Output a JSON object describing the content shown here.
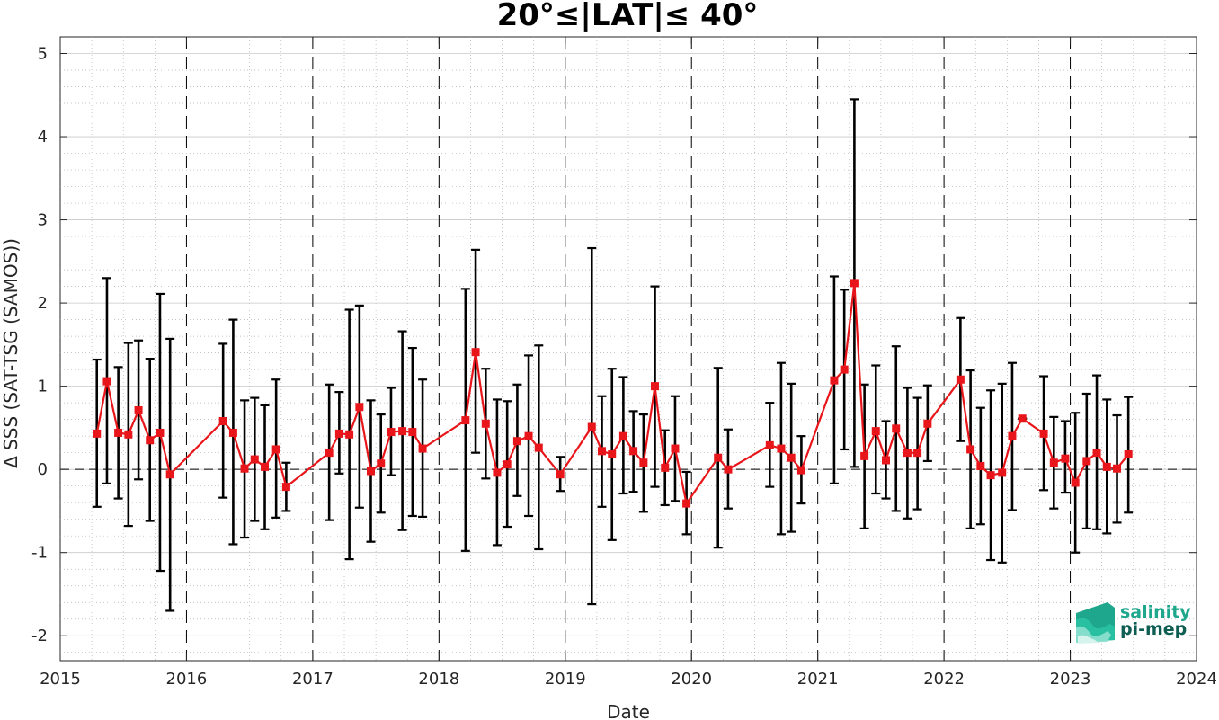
{
  "chart_data": {
    "type": "line",
    "title": "20°≤|LAT|≤ 40°",
    "xlabel": "Date",
    "ylabel": "Δ SSS (SAT-TSG (SAMOS))",
    "xlim": [
      2015,
      2024
    ],
    "ylim": [
      -2.3,
      5.2
    ],
    "xticks": [
      "2015",
      "2016",
      "2017",
      "2018",
      "2019",
      "2020",
      "2021",
      "2022",
      "2023",
      "2024"
    ],
    "yticks": [
      "5",
      "4",
      "3",
      "2",
      "1",
      "0",
      "-1",
      "-2"
    ],
    "grid": true,
    "year_separators": [
      2016,
      2017,
      2018,
      2019,
      2020,
      2021,
      2022,
      2023
    ],
    "zero_line": 0,
    "series_color": "#e8161a",
    "errorbar_color": "#000000",
    "series": [
      {
        "x": [
          2015.29,
          2015.37,
          2015.46,
          2015.54,
          2015.62,
          2015.71,
          2015.79,
          2015.87,
          2016.29,
          2016.37,
          2016.46,
          2016.54,
          2016.62,
          2016.71,
          2016.79,
          2017.13,
          2017.21,
          2017.29,
          2017.37,
          2017.46,
          2017.54,
          2017.62,
          2017.71,
          2017.79,
          2017.87,
          2018.21,
          2018.29,
          2018.37,
          2018.46,
          2018.54,
          2018.62,
          2018.71,
          2018.79,
          2018.96,
          2019.21,
          2019.29,
          2019.37,
          2019.46,
          2019.54,
          2019.62,
          2019.71,
          2019.79,
          2019.87,
          2019.96,
          2020.21,
          2020.29,
          2020.62,
          2020.71,
          2020.79,
          2020.87,
          2021.13,
          2021.21,
          2021.29,
          2021.37,
          2021.46,
          2021.54,
          2021.62,
          2021.71,
          2021.79,
          2021.87,
          2022.13,
          2022.21,
          2022.29,
          2022.37,
          2022.46,
          2022.54,
          2022.62,
          2022.79,
          2022.87,
          2022.96,
          2023.04,
          2023.13,
          2023.21,
          2023.29,
          2023.37,
          2023.46
        ],
        "y": [
          0.43,
          1.06,
          0.44,
          0.42,
          0.71,
          0.35,
          0.44,
          -0.06,
          0.58,
          0.44,
          0.01,
          0.12,
          0.03,
          0.24,
          -0.21,
          0.2,
          0.43,
          0.42,
          0.75,
          -0.02,
          0.07,
          0.45,
          0.46,
          0.45,
          0.25,
          0.59,
          1.41,
          0.55,
          -0.04,
          0.06,
          0.34,
          0.4,
          0.26,
          -0.06,
          0.51,
          0.22,
          0.18,
          0.4,
          0.22,
          0.08,
          1.0,
          0.02,
          0.25,
          -0.41,
          0.14,
          0.0,
          0.29,
          0.25,
          0.14,
          -0.01,
          1.07,
          1.2,
          2.24,
          0.16,
          0.46,
          0.11,
          0.49,
          0.2,
          0.2,
          0.55,
          1.08,
          0.24,
          0.04,
          -0.07,
          -0.04,
          0.4,
          0.61,
          0.43,
          0.08,
          0.13,
          -0.16,
          0.1,
          0.2,
          0.03,
          0.01,
          0.18
        ],
        "y_low": [
          -0.45,
          -0.17,
          -0.35,
          -0.68,
          -0.12,
          -0.62,
          -1.22,
          -1.7,
          -0.34,
          -0.9,
          -0.82,
          -0.62,
          -0.72,
          -0.58,
          -0.5,
          -0.61,
          -0.05,
          -1.08,
          -0.46,
          -0.87,
          -0.52,
          -0.07,
          -0.73,
          -0.56,
          -0.57,
          -0.98,
          0.2,
          -0.11,
          -0.91,
          -0.69,
          -0.32,
          -0.56,
          -0.96,
          -0.26,
          -1.62,
          -0.45,
          -0.85,
          -0.29,
          -0.27,
          -0.51,
          -0.21,
          -0.43,
          -0.38,
          -0.78,
          -0.94,
          -0.47,
          -0.21,
          -0.78,
          -0.75,
          -0.41,
          -0.17,
          0.24,
          0.03,
          -0.71,
          -0.29,
          -0.35,
          -0.5,
          -0.59,
          -0.48,
          0.1,
          0.34,
          -0.71,
          -0.66,
          -1.09,
          -1.12,
          -0.49,
          0.61,
          -0.25,
          -0.47,
          -0.28,
          -1.0,
          -0.71,
          -0.72,
          -0.77,
          -0.64,
          -0.52
        ],
        "y_high": [
          1.32,
          2.3,
          1.23,
          1.52,
          1.55,
          1.33,
          2.11,
          1.57,
          1.51,
          1.8,
          0.83,
          0.86,
          0.77,
          1.08,
          0.08,
          1.02,
          0.93,
          1.92,
          1.97,
          0.83,
          0.66,
          0.98,
          1.66,
          1.46,
          1.08,
          2.17,
          2.64,
          1.21,
          0.84,
          0.82,
          1.02,
          1.37,
          1.49,
          0.15,
          2.66,
          0.88,
          1.21,
          1.11,
          0.7,
          0.66,
          2.2,
          0.47,
          0.88,
          -0.03,
          1.22,
          0.48,
          0.8,
          1.28,
          1.03,
          0.4,
          2.32,
          2.16,
          4.45,
          1.02,
          1.25,
          0.58,
          1.48,
          0.98,
          0.86,
          1.01,
          1.82,
          1.19,
          0.74,
          0.95,
          1.03,
          1.28,
          0.61,
          1.12,
          0.63,
          0.58,
          0.68,
          0.91,
          1.13,
          0.84,
          0.65,
          0.87
        ]
      }
    ]
  },
  "logo": {
    "line1": "salinity",
    "line2": "pi-mep"
  }
}
